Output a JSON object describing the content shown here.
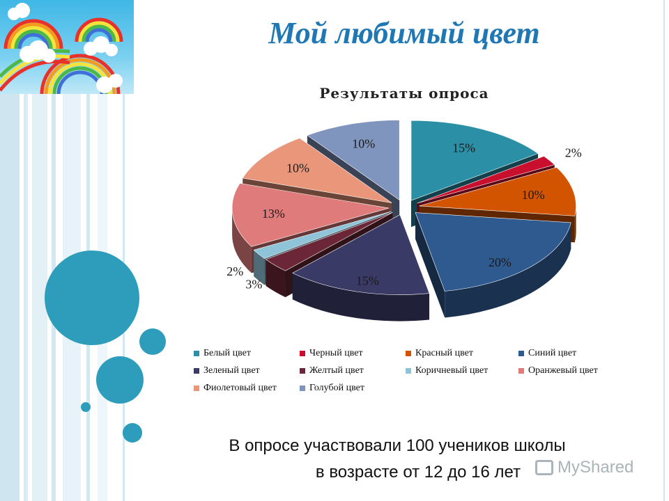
{
  "slide": {
    "title": "Мой любимый цвет",
    "caption_line1": "В опросе участвовали 100 учеников школы",
    "caption_line2": "в возрасте от 12 до 16 лет",
    "watermark": "MyShared"
  },
  "chart_data": {
    "type": "pie",
    "title": "Результаты опроса",
    "legend_position": "bottom",
    "categories": [
      "Белый цвет",
      "Черный цвет",
      "Красный цвет",
      "Синий цвет",
      "Зеленый цвет",
      "Желтый цвет",
      "Коричневый цвет",
      "Оранжевый цвет",
      "Фиолетовый цвет",
      "Голубой цвет"
    ],
    "values": [
      15,
      2,
      10,
      20,
      15,
      3,
      2,
      13,
      10,
      10
    ],
    "labels": [
      "15%",
      "2%",
      "10%",
      "20%",
      "15%",
      "3%",
      "2%",
      "13%",
      "10%",
      "10%"
    ],
    "colors": [
      "#2b8fa6",
      "#c8102e",
      "#d35400",
      "#2f5a8f",
      "#3a3a66",
      "#6b2737",
      "#8fc3d8",
      "#e07b7b",
      "#e9967a",
      "#8095bd"
    ]
  },
  "colors": {
    "title": "#1f78b4",
    "accent_circle": "#2e9dbb"
  }
}
